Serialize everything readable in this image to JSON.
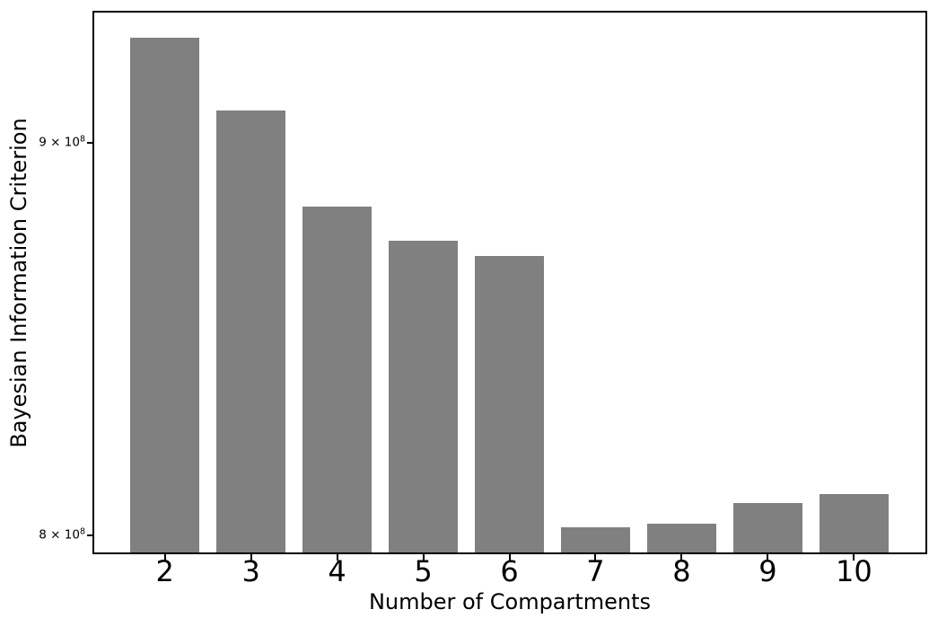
{
  "figure": {
    "background_color": "#ffffff",
    "axis_color": "#000000",
    "text_color": "#000000"
  },
  "chart_data": {
    "type": "bar",
    "title": "",
    "xlabel": "Number of Compartments",
    "ylabel": "Bayesian Information Criterion",
    "categories": [
      2,
      3,
      4,
      5,
      6,
      7,
      8,
      9,
      10
    ],
    "values": [
      929000000,
      909000000,
      883000000,
      874000000,
      870000000,
      802000000,
      803000000,
      808000000,
      810000000
    ],
    "bar_color": "#808080",
    "yscale": "log",
    "ylim": [
      796000000,
      936000000
    ],
    "xlim": [
      1.18,
      10.83
    ],
    "bar_width_units": 0.8,
    "grid": false,
    "legend": null,
    "yticks": [
      {
        "value": 800000000,
        "text": "8 × 10",
        "exponent": "8"
      },
      {
        "value": 900000000,
        "text": "9 × 10",
        "exponent": "8"
      }
    ]
  }
}
